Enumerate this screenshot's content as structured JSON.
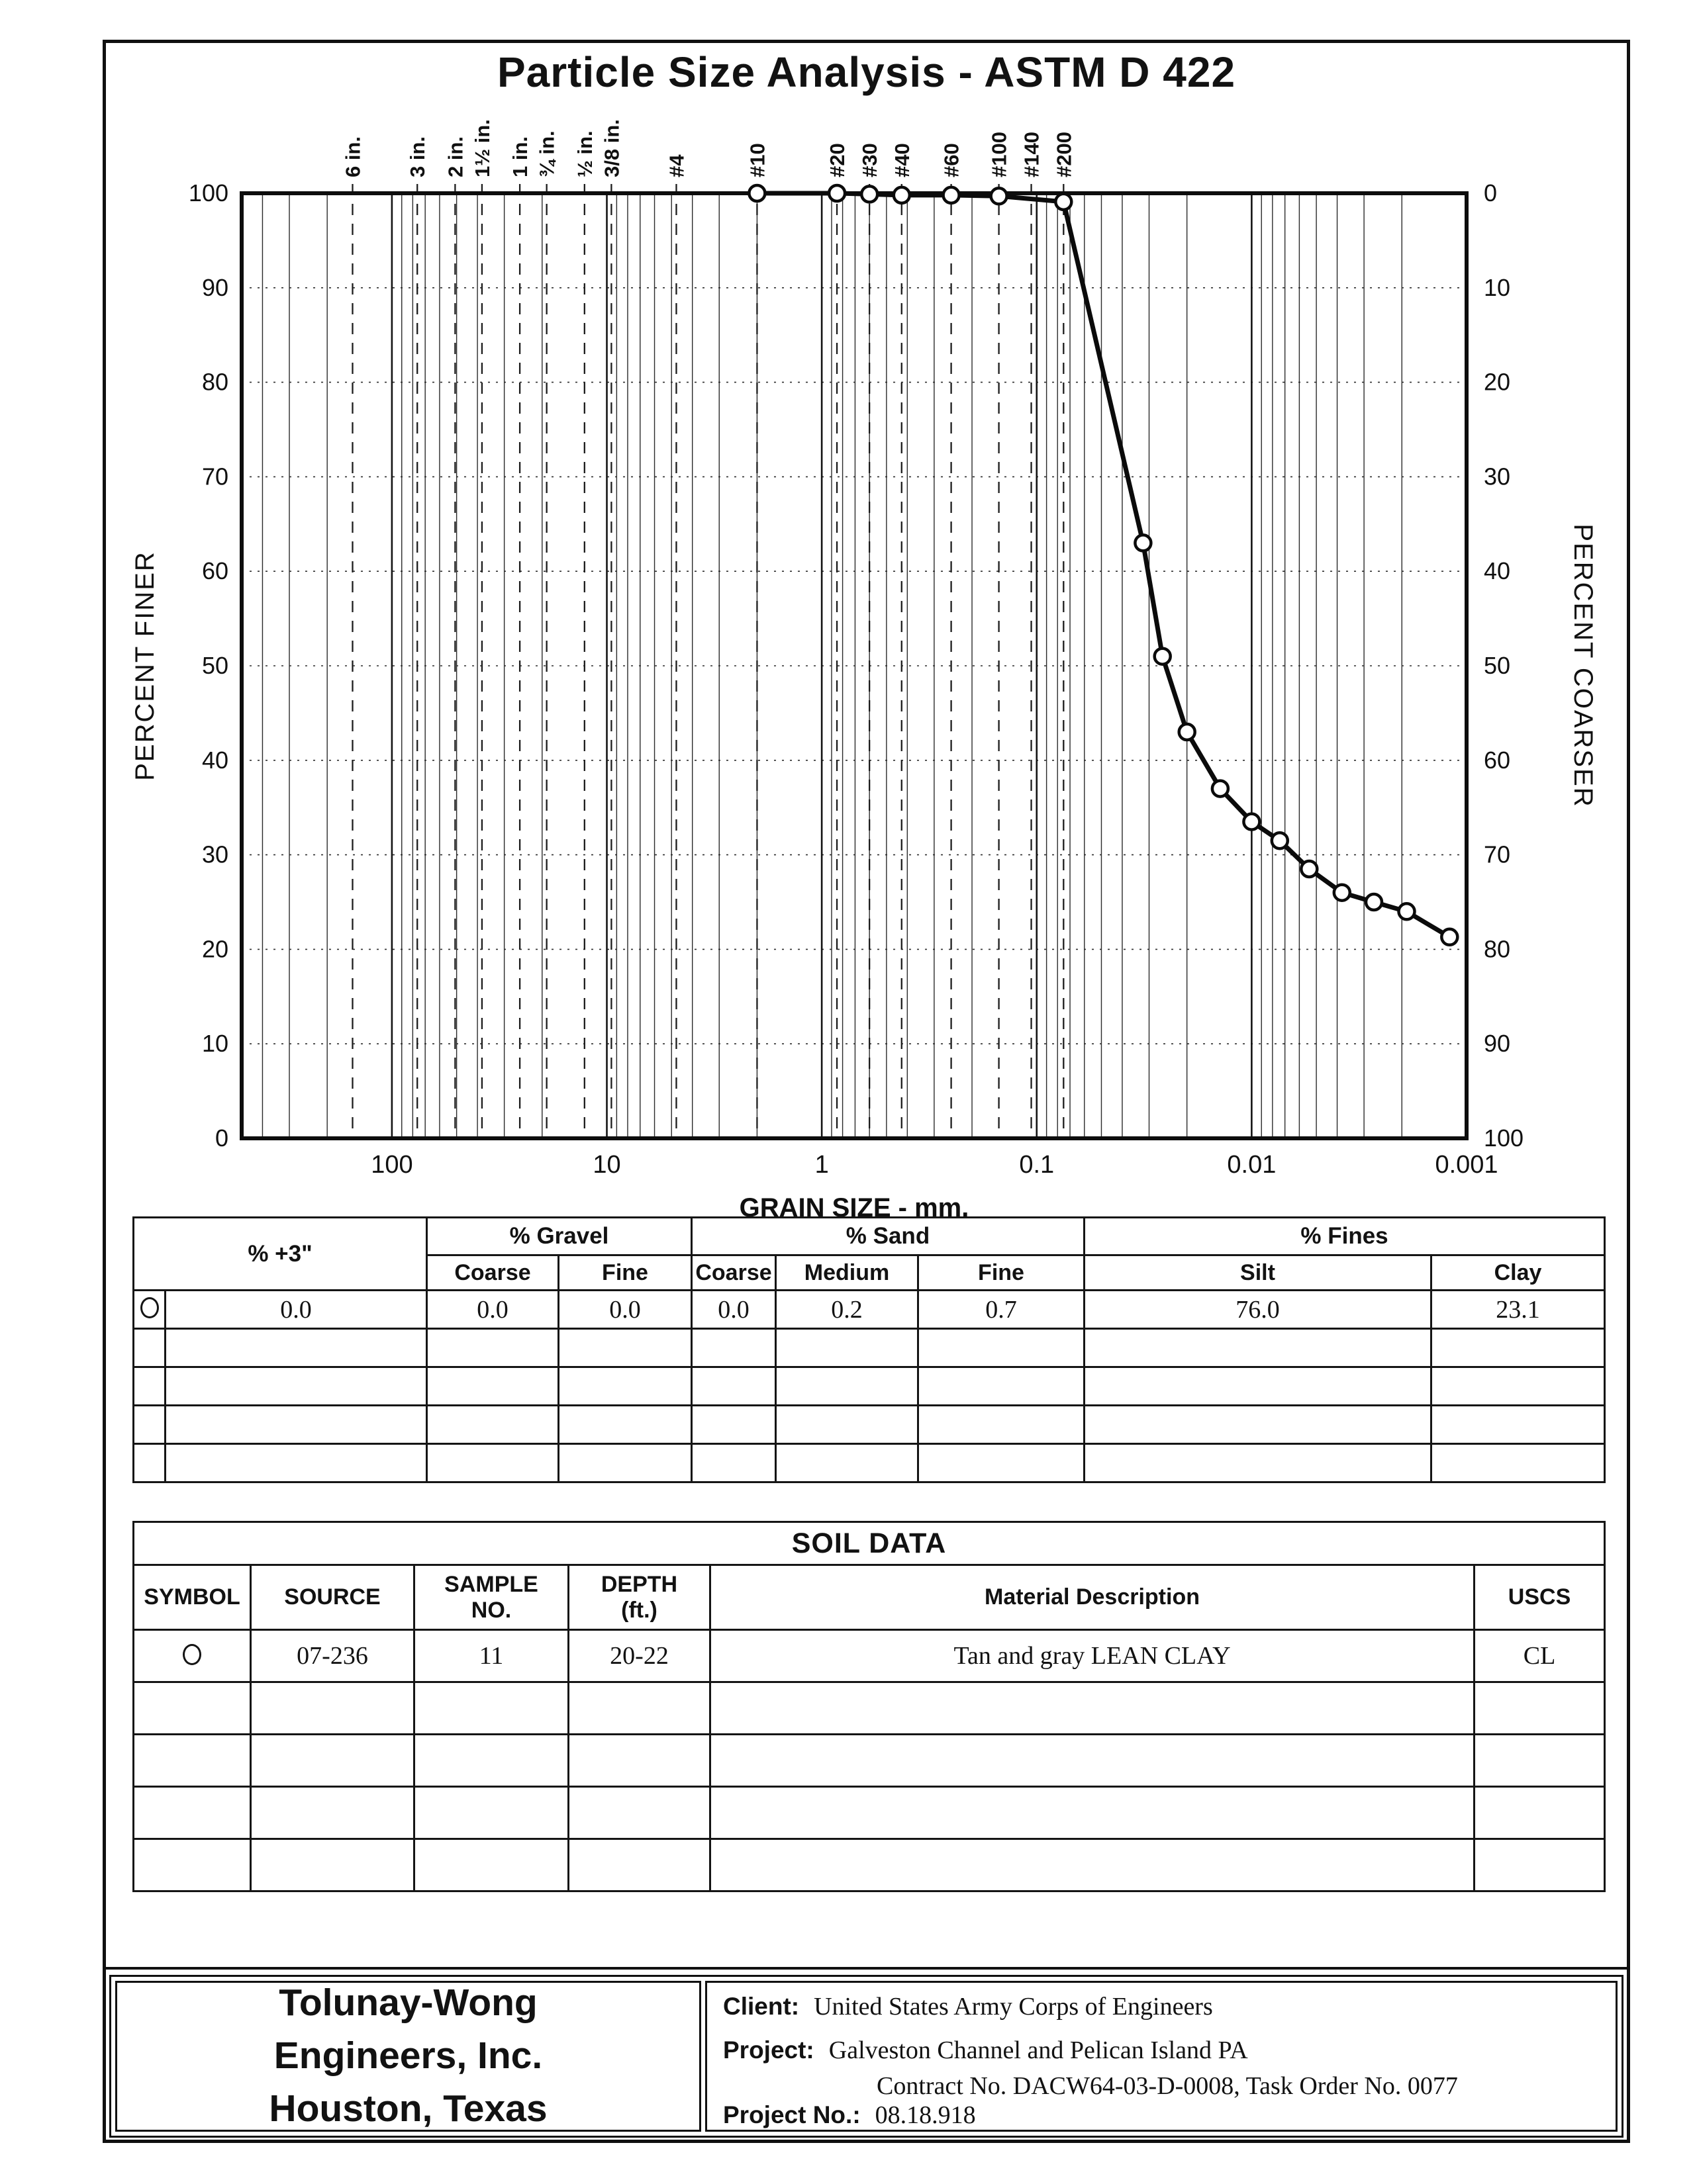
{
  "page": {
    "title": "Particle Size Analysis - ASTM D 422"
  },
  "chart": {
    "x_axis_label": "GRAIN SIZE - mm.",
    "left_axis_label": "PERCENT FINER",
    "right_axis_label": "PERCENT COARSER",
    "x_tick_labels": [
      "100",
      "10",
      "1",
      "0.1",
      "0.01",
      "0.001"
    ],
    "x_tick_values": [
      100,
      10,
      1,
      0.1,
      0.01,
      0.001
    ],
    "left_tick_labels": [
      "100",
      "90",
      "80",
      "70",
      "60",
      "50",
      "40",
      "30",
      "20",
      "10",
      "0"
    ],
    "right_tick_labels": [
      "0",
      "10",
      "20",
      "30",
      "40",
      "50",
      "60",
      "70",
      "80",
      "90",
      "100"
    ]
  },
  "chart_data": {
    "type": "line",
    "title": "Particle Size Analysis - ASTM D 422",
    "xlabel": "GRAIN SIZE - mm.",
    "ylabel": "PERCENT FINER",
    "ylabel_right": "PERCENT COARSER",
    "x_scale": "log",
    "x_range_mm": [
      500,
      0.001
    ],
    "ylim": [
      0,
      100
    ],
    "grid": true,
    "sieve_ticks": [
      {
        "label": "6 in.",
        "mm": 152.4
      },
      {
        "label": "3 in.",
        "mm": 76.2
      },
      {
        "label": "2 in.",
        "mm": 50.8
      },
      {
        "label": "1½ in.",
        "mm": 38.1
      },
      {
        "label": "1 in.",
        "mm": 25.4
      },
      {
        "label": "¾ in.",
        "mm": 19.05
      },
      {
        "label": "½ in.",
        "mm": 12.7
      },
      {
        "label": "3/8 in.",
        "mm": 9.525
      },
      {
        "label": "#4",
        "mm": 4.75
      },
      {
        "label": "#10",
        "mm": 2.0
      },
      {
        "label": "#20",
        "mm": 0.85
      },
      {
        "label": "#30",
        "mm": 0.6
      },
      {
        "label": "#40",
        "mm": 0.425
      },
      {
        "label": "#60",
        "mm": 0.25
      },
      {
        "label": "#100",
        "mm": 0.15
      },
      {
        "label": "#140",
        "mm": 0.106
      },
      {
        "label": "#200",
        "mm": 0.075
      }
    ],
    "series": [
      {
        "name": "07-236 Sample 11 (20-22 ft)",
        "symbol": "open-circle",
        "points_mm_percent_finer": [
          [
            2.0,
            100
          ],
          [
            0.85,
            100
          ],
          [
            0.6,
            99.9
          ],
          [
            0.425,
            99.8
          ],
          [
            0.25,
            99.8
          ],
          [
            0.15,
            99.7
          ],
          [
            0.075,
            99.1
          ],
          [
            0.032,
            63
          ],
          [
            0.026,
            51
          ],
          [
            0.02,
            43
          ],
          [
            0.014,
            37
          ],
          [
            0.01,
            33.5
          ],
          [
            0.0074,
            31.5
          ],
          [
            0.0054,
            28.5
          ],
          [
            0.0038,
            26
          ],
          [
            0.0027,
            25
          ],
          [
            0.0019,
            24
          ],
          [
            0.0012,
            21.3
          ]
        ]
      }
    ]
  },
  "gradation_table": {
    "group_plus3": "% +3\"",
    "group_gravel": "% Gravel",
    "group_sand": "% Sand",
    "group_fines": "% Fines",
    "sub_gravel_coarse": "Coarse",
    "sub_gravel_fine": "Fine",
    "sub_sand_coarse": "Coarse",
    "sub_sand_medium": "Medium",
    "sub_sand_fine": "Fine",
    "sub_fines_silt": "Silt",
    "sub_fines_clay": "Clay",
    "row": {
      "plus3": "0.0",
      "gravel_coarse": "0.0",
      "gravel_fine": "0.0",
      "sand_coarse": "0.0",
      "sand_medium": "0.2",
      "sand_fine": "0.7",
      "silt": "76.0",
      "clay": "23.1"
    }
  },
  "soil_table": {
    "title": "SOIL DATA",
    "headers": {
      "symbol": "SYMBOL",
      "source": "SOURCE",
      "sample_line1": "SAMPLE",
      "sample_line2": "NO.",
      "depth_line1": "DEPTH",
      "depth_line2": "(ft.)",
      "description": "Material Description",
      "uscs": "USCS"
    },
    "row": {
      "source": "07-236",
      "sample_no": "11",
      "depth": "20-22",
      "description": "Tan and gray LEAN CLAY",
      "uscs": "CL"
    }
  },
  "footer": {
    "company_line1": "Tolunay-Wong",
    "company_line2": "Engineers, Inc.",
    "company_line3": "Houston, Texas",
    "client_label": "Client:",
    "client": "United States Army Corps of Engineers",
    "project_label": "Project:",
    "project_line1": "Galveston Channel and Pelican Island PA",
    "project_line2": "Contract No. DACW64-03-D-0008, Task Order No. 0077",
    "project_no_label": "Project No.:",
    "project_no": "08.18.918"
  }
}
